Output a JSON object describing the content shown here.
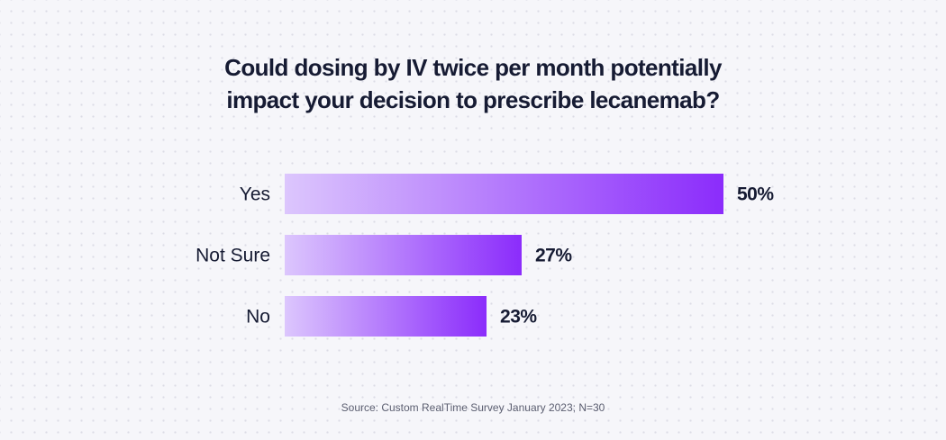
{
  "chart_data": {
    "type": "bar",
    "orientation": "horizontal",
    "title_lines": [
      "Could dosing by IV twice per month potentially",
      "impact your decision to prescribe lecanemab?"
    ],
    "categories": [
      "Yes",
      "Not Sure",
      "No"
    ],
    "values": [
      50,
      27,
      23
    ],
    "value_labels": [
      "50%",
      "27%",
      "23%"
    ],
    "xlabel": "",
    "ylabel": "",
    "xlim": [
      0,
      50
    ],
    "grid": false,
    "legend": "none",
    "colors": {
      "gradient_start": "#dcc6fd",
      "gradient_end": "#8b2cfb",
      "text": "#161b33"
    },
    "source": "Source: Custom RealTime Survey January 2023; N=30"
  }
}
